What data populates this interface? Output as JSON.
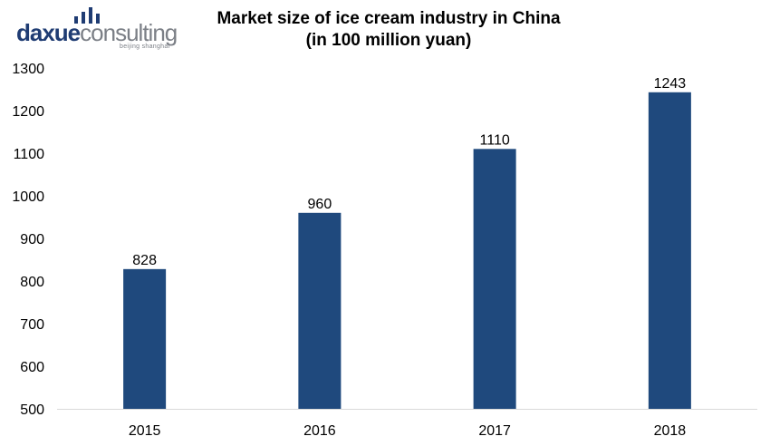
{
  "logo": {
    "word_part1": "daxue",
    "word_part2": "consulting",
    "tagline": "beijing shanghai",
    "brand_color": "#1f3c73",
    "gray_color": "#7b7f86"
  },
  "chart_data": {
    "type": "bar",
    "title": "Market size of ice cream industry in China",
    "subtitle": "(in 100 million yuan)",
    "xlabel": "",
    "ylabel": "",
    "categories": [
      "2015",
      "2016",
      "2017",
      "2018"
    ],
    "values": [
      828,
      960,
      1110,
      1243
    ],
    "data_labels": [
      "828",
      "960",
      "1110",
      "1243"
    ],
    "ylim": [
      500,
      1300
    ],
    "yticks": [
      "500",
      "600",
      "700",
      "800",
      "900",
      "1000",
      "1100",
      "1200",
      "1300"
    ],
    "grid": false,
    "legend": "none",
    "bar_color": "#1f497d"
  }
}
